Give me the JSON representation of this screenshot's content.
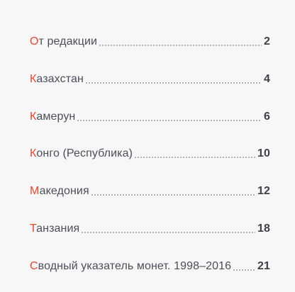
{
  "toc": {
    "entries": [
      {
        "first_letter": "О",
        "rest": "т редакции",
        "page": "2"
      },
      {
        "first_letter": "К",
        "rest": "азахстан",
        "page": "4"
      },
      {
        "first_letter": "К",
        "rest": "амерун",
        "page": "6"
      },
      {
        "first_letter": "К",
        "rest": "онго (Республика)",
        "page": "10"
      },
      {
        "first_letter": "М",
        "rest": "акедония",
        "page": "12"
      },
      {
        "first_letter": "Т",
        "rest": "анзания",
        "page": "18"
      },
      {
        "first_letter": "С",
        "rest": "водный указатель монет. 1998–2016",
        "page": "21"
      }
    ],
    "accent_color": "#e3472f",
    "text_color": "#4b4f5a"
  }
}
